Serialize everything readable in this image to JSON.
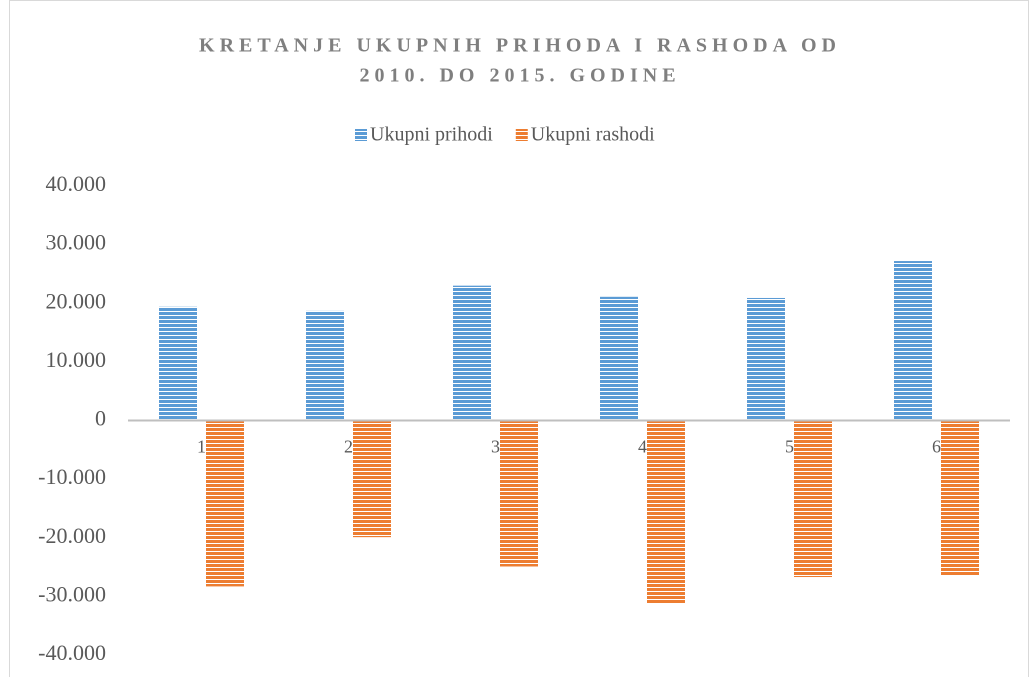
{
  "chart_data": {
    "type": "bar",
    "title": [
      "KRETANJE UKUPNIH PRIHODA I RASHODA OD",
      "2010. DO 2015. GODINE"
    ],
    "categories": [
      "1",
      "2",
      "3",
      "4",
      "5",
      "6"
    ],
    "series": [
      {
        "name": "Ukupni prihodi",
        "color": "#5b9bd5",
        "values": [
          19400,
          18700,
          23000,
          21100,
          20900,
          27200
        ]
      },
      {
        "name": "Ukupni rashodi",
        "color": "#ed7d31",
        "values": [
          -28300,
          -19900,
          -24900,
          -31300,
          -26700,
          -26400
        ]
      }
    ],
    "ylim": [
      -40000,
      40000
    ],
    "yticks": [
      {
        "value": -40000,
        "label": "-40.000"
      },
      {
        "value": -30000,
        "label": "-30.000"
      },
      {
        "value": -20000,
        "label": "-20.000"
      },
      {
        "value": -10000,
        "label": "-10.000"
      },
      0,
      {
        "value": 10000,
        "label": "10.000"
      },
      {
        "value": 20000,
        "label": "20.000"
      },
      {
        "value": 30000,
        "label": "30.000"
      },
      {
        "value": 40000,
        "label": "40.000"
      }
    ],
    "grid": false,
    "legend": "top"
  }
}
